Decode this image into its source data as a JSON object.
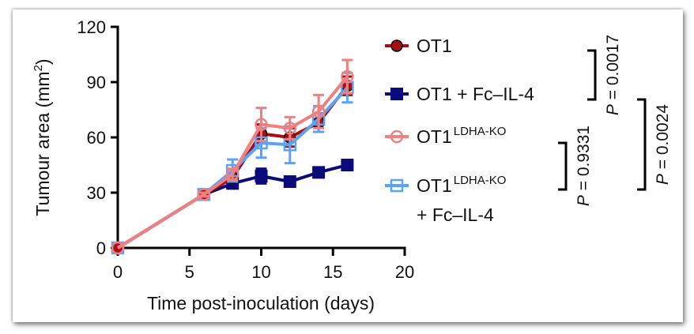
{
  "chart_data": {
    "type": "line",
    "title": "",
    "xlabel": "Time post-inoculation (days)",
    "ylabel": "Tumour area (mm²)",
    "ylabel_base": "Tumour area (mm",
    "ylabel_sup": "2",
    "ylabel_close": ")",
    "xlim": [
      0,
      20
    ],
    "ylim": [
      0,
      120
    ],
    "xticks": [
      0,
      5,
      10,
      15,
      20
    ],
    "yticks": [
      0,
      30,
      60,
      90,
      120
    ],
    "grid": false,
    "legend_position": "right",
    "x": [
      0,
      6,
      8,
      10,
      12,
      14,
      16
    ],
    "series": [
      {
        "name": "OT1",
        "label_main": "OT1",
        "label_sup": "",
        "label_line2": "",
        "color": "#a50f15",
        "marker": "filled-circle",
        "values": [
          0,
          29,
          38,
          62,
          60,
          68,
          88
        ],
        "errors": [
          0,
          1,
          2,
          5,
          5,
          5,
          5
        ]
      },
      {
        "name": "OT1 + Fc–IL-4",
        "label_main": "OT1 + Fc–IL-4",
        "label_sup": "",
        "label_line2": "",
        "color": "#0a0a7a",
        "marker": "filled-square",
        "values": [
          0,
          29,
          35,
          39,
          36,
          41,
          45
        ],
        "errors": [
          0,
          1,
          2,
          4,
          2,
          2,
          2
        ]
      },
      {
        "name": "OT1 LDHA-KO",
        "label_main": "OT1",
        "label_sup": "LDHA-KO",
        "label_line2": "",
        "color": "#f08080",
        "marker": "open-circle",
        "values": [
          0,
          29,
          40,
          67,
          65,
          74,
          93
        ],
        "errors": [
          0,
          1,
          3,
          9,
          6,
          9,
          9
        ]
      },
      {
        "name": "OT1 LDHA-KO + Fc–IL-4",
        "label_main": "OT1",
        "label_sup": "LDHA-KO",
        "label_line2": "+ Fc–IL-4",
        "color": "#5ba3f5",
        "marker": "open-square",
        "values": [
          0,
          29,
          42,
          57,
          56,
          70,
          87
        ],
        "errors": [
          0,
          1,
          6,
          8,
          10,
          7,
          8
        ]
      }
    ],
    "annotations": [
      {
        "text_p": "P",
        "text_val": " = 0.0017",
        "compares": [
          "OT1",
          "OT1 + Fc–IL-4"
        ]
      },
      {
        "text_p": "P",
        "text_val": " = 0.9331",
        "compares": [
          "OT1 LDHA-KO",
          "OT1 LDHA-KO + Fc–IL-4"
        ]
      },
      {
        "text_p": "P",
        "text_val": " = 0.0024",
        "compares": [
          "OT1 + Fc–IL-4",
          "OT1 LDHA-KO + Fc–IL-4"
        ]
      }
    ]
  }
}
